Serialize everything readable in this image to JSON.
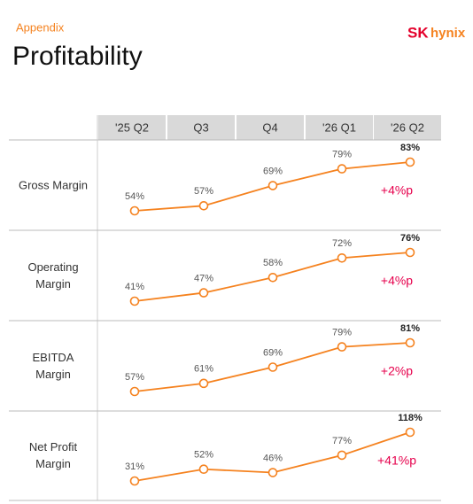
{
  "header": {
    "section": "Appendix",
    "title": "Profitability",
    "logo": [
      "SK",
      "hynix"
    ]
  },
  "columns": [
    "'25 Q2",
    "Q3",
    "Q4",
    "'26 Q1",
    "'26 Q2"
  ],
  "chart_data": [
    {
      "type": "line",
      "title": "Gross Margin",
      "color": "#f5821f",
      "values": [
        54,
        57,
        69,
        79,
        83
      ],
      "value_labels": [
        "54%",
        "57%",
        "69%",
        "79%",
        "83%"
      ],
      "annotation": "+4%p"
    },
    {
      "type": "line",
      "title": "Operating Margin",
      "color": "#f5821f",
      "values": [
        41,
        47,
        58,
        72,
        76
      ],
      "value_labels": [
        "41%",
        "47%",
        "58%",
        "72%",
        "76%"
      ],
      "annotation": "+4%p"
    },
    {
      "type": "line",
      "title": "EBITDA Margin",
      "color": "#f5821f",
      "values": [
        57,
        61,
        69,
        79,
        81
      ],
      "value_labels": [
        "57%",
        "61%",
        "69%",
        "79%",
        "81%"
      ],
      "annotation": "+2%p"
    },
    {
      "type": "line",
      "title": "Net Profit Margin",
      "color": "#f5821f",
      "values": [
        31,
        52,
        46,
        77,
        118
      ],
      "value_labels": [
        "31%",
        "52%",
        "46%",
        "77%",
        "118%"
      ],
      "annotation": "+41%p"
    }
  ]
}
